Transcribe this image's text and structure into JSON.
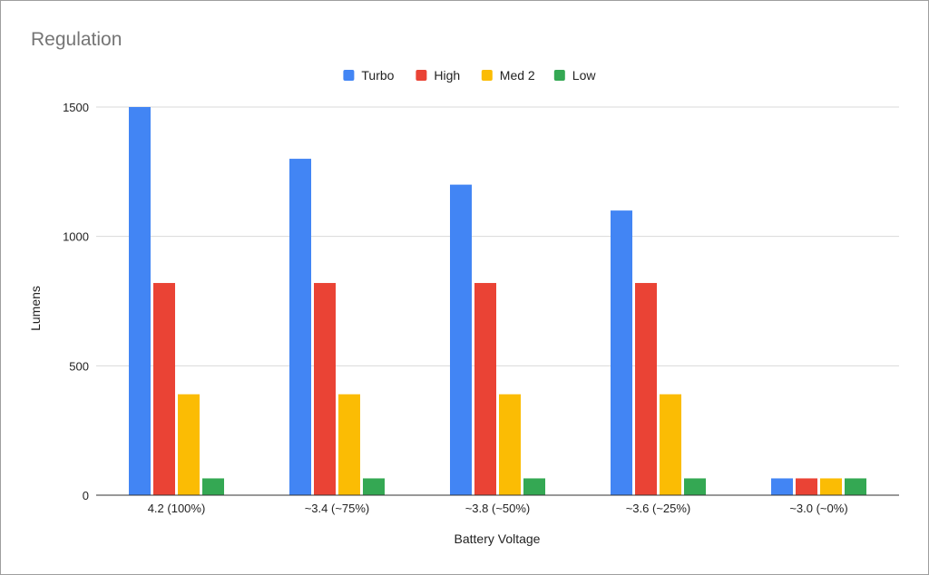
{
  "chart_data": {
    "type": "bar",
    "title": "Regulation",
    "xlabel": "Battery Voltage",
    "ylabel": "Lumens",
    "categories": [
      "4.2 (100%)",
      "~3.4 (~75%)",
      "~3.8 (~50%)",
      "~3.6 (~25%)",
      "~3.0 (~0%)"
    ],
    "series": [
      {
        "name": "Turbo",
        "color": "#4285f4",
        "values": [
          1500,
          1300,
          1200,
          1100,
          65
        ]
      },
      {
        "name": "High",
        "color": "#ea4335",
        "values": [
          820,
          820,
          820,
          820,
          65
        ]
      },
      {
        "name": "Med 2",
        "color": "#fbbc04",
        "values": [
          390,
          390,
          390,
          390,
          65
        ]
      },
      {
        "name": "Low",
        "color": "#34a853",
        "values": [
          65,
          65,
          65,
          65,
          65
        ]
      }
    ],
    "ylim": [
      0,
      1500
    ],
    "yticks": [
      0,
      500,
      1000,
      1500
    ],
    "grid": true,
    "legend": "top-center"
  }
}
